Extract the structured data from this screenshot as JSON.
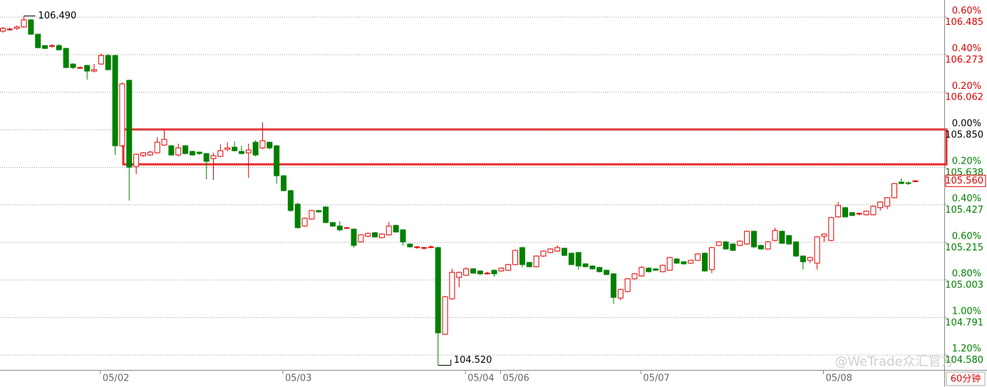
{
  "chart_data": {
    "type": "candlestick",
    "up_color": "#e00000",
    "down_color": "#008000",
    "grid": true,
    "ylim": [
      104.494,
      106.58
    ],
    "yticks": [
      106.485,
      106.273,
      106.062,
      {
        "value": 105.85,
        "label": "105.850"
      },
      105.638,
      105.427,
      105.215,
      105.003,
      104.791,
      {
        "value": 104.58,
        "label": "104.580"
      }
    ],
    "y2lim": [
      -1.281,
      0.69
    ],
    "y2ticks": [
      {
        "value": 0.6,
        "label": "0.60%"
      },
      {
        "value": 0.4,
        "label": "0.40%"
      },
      {
        "value": 0.2,
        "label": "0.20%"
      },
      {
        "value": 0,
        "label": "0.00%"
      },
      {
        "value": -0.2,
        "label": "0.20%"
      },
      {
        "value": -0.4,
        "label": "0.40%"
      },
      {
        "value": -0.6,
        "label": "0.60%"
      },
      {
        "value": -0.8,
        "label": "0.80%"
      },
      {
        "value": -1.0,
        "label": "1.00%"
      },
      {
        "value": -1.2,
        "label": "1.20%"
      }
    ],
    "categories": [
      null,
      null,
      null,
      null,
      null,
      null,
      null,
      null,
      null,
      null,
      null,
      null,
      null,
      null,
      "05/02",
      null,
      null,
      null,
      null,
      null,
      null,
      null,
      null,
      null,
      null,
      null,
      null,
      null,
      null,
      null,
      null,
      null,
      null,
      null,
      null,
      null,
      null,
      null,
      null,
      null,
      "05/03",
      null,
      null,
      null,
      null,
      null,
      null,
      null,
      null,
      null,
      null,
      null,
      null,
      null,
      null,
      null,
      null,
      null,
      null,
      null,
      null,
      null,
      null,
      null,
      null,
      null,
      "05/04",
      null,
      null,
      null,
      null,
      "05/06",
      null,
      null,
      null,
      null,
      null,
      null,
      null,
      null,
      null,
      null,
      null,
      null,
      null,
      null,
      null,
      null,
      null,
      null,
      null,
      "05/07",
      null,
      null,
      null,
      null,
      null,
      null,
      null,
      null,
      null,
      null,
      null,
      null,
      null,
      null,
      null,
      null,
      null,
      null,
      null,
      null,
      null,
      null,
      null,
      null,
      null,
      "05/08",
      null,
      null,
      null,
      null,
      null,
      null,
      null,
      null,
      null,
      null,
      null,
      null,
      null
    ],
    "open": [
      106.404,
      106.416,
      106.42,
      106.428,
      106.468,
      106.387,
      106.323,
      106.319,
      106.323,
      106.307,
      106.219,
      106.199,
      106.211,
      106.179,
      106.219,
      106.267,
      106.267,
      105.758,
      106.127,
      105.641,
      105.702,
      105.706,
      105.718,
      105.762,
      105.758,
      105.706,
      105.758,
      105.726,
      105.722,
      105.714,
      105.686,
      105.698,
      105.738,
      105.75,
      105.726,
      105.718,
      105.778,
      105.746,
      105.778,
      105.758,
      105.589,
      105.505,
      105.429,
      105.305,
      105.345,
      105.393,
      105.413,
      105.325,
      105.305,
      105.296,
      105.288,
      105.216,
      105.248,
      105.268,
      105.24,
      105.256,
      105.309,
      105.284,
      105.204,
      105.188,
      105.184,
      105.184,
      105.184,
      104.695,
      104.895,
      105.016,
      105.028,
      105.064,
      105.052,
      105.04,
      105.056,
      105.052,
      105.056,
      105.088,
      105.184,
      105.1,
      105.076,
      105.136,
      105.156,
      105.164,
      105.18,
      105.152,
      105.156,
      105.092,
      105.08,
      105.072,
      105.056,
      105.036,
      104.899,
      104.936,
      105.008,
      105.024,
      105.068,
      105.064,
      105.048,
      105.056,
      105.12,
      105.104,
      105.096,
      105.112,
      105.152,
      105.06,
      105.196,
      105.216,
      105.204,
      105.196,
      105.204,
      105.276,
      105.196,
      105.176,
      105.224,
      105.276,
      105.252,
      105.216,
      105.136,
      105.112,
      105.096,
      105.248,
      105.224,
      105.357,
      105.409,
      105.381,
      105.377,
      105.369,
      105.369,
      105.409,
      105.417,
      105.465,
      105.553,
      105.549,
      105.557
    ],
    "high": [
      106.428,
      106.424,
      106.436,
      106.49,
      106.472,
      106.391,
      106.327,
      106.331,
      106.331,
      106.311,
      106.223,
      106.207,
      106.215,
      106.219,
      106.279,
      106.275,
      106.271,
      106.115,
      106.131,
      105.714,
      105.722,
      105.73,
      105.806,
      105.846,
      105.762,
      105.77,
      105.762,
      105.73,
      105.726,
      105.718,
      105.718,
      105.766,
      105.778,
      105.782,
      105.758,
      105.77,
      105.79,
      105.89,
      105.782,
      105.762,
      105.593,
      105.509,
      105.437,
      105.353,
      105.397,
      105.397,
      105.417,
      105.329,
      105.333,
      105.3,
      105.292,
      105.26,
      105.268,
      105.272,
      105.264,
      105.329,
      105.313,
      105.288,
      105.208,
      105.192,
      105.188,
      105.196,
      105.188,
      104.911,
      105.064,
      105.048,
      105.072,
      105.068,
      105.056,
      105.048,
      105.06,
      105.072,
      105.092,
      105.172,
      105.188,
      105.104,
      105.14,
      105.168,
      105.18,
      105.196,
      105.184,
      105.156,
      105.16,
      105.096,
      105.084,
      105.076,
      105.06,
      105.04,
      104.952,
      105.012,
      105.04,
      105.08,
      105.072,
      105.068,
      105.088,
      105.132,
      105.124,
      105.108,
      105.116,
      105.152,
      105.156,
      105.188,
      105.22,
      105.22,
      105.208,
      105.224,
      105.28,
      105.28,
      105.2,
      105.22,
      105.296,
      105.28,
      105.256,
      105.22,
      105.14,
      105.132,
      105.248,
      105.264,
      105.357,
      105.441,
      105.413,
      105.385,
      105.381,
      105.393,
      105.421,
      105.445,
      105.469,
      105.549,
      105.573,
      105.557,
      105.565
    ],
    "low": [
      106.396,
      106.408,
      106.412,
      106.424,
      106.383,
      106.307,
      106.303,
      106.311,
      106.295,
      106.195,
      106.191,
      106.191,
      106.131,
      106.171,
      106.215,
      106.183,
      105.706,
      105.75,
      105.449,
      105.598,
      105.694,
      105.702,
      105.714,
      105.758,
      105.702,
      105.698,
      105.71,
      105.702,
      105.706,
      105.569,
      105.565,
      105.694,
      105.726,
      105.726,
      105.71,
      105.577,
      105.698,
      105.738,
      105.738,
      105.545,
      105.501,
      105.385,
      105.292,
      105.301,
      105.341,
      105.381,
      105.321,
      105.301,
      105.276,
      105.292,
      105.184,
      105.212,
      105.244,
      105.24,
      105.236,
      105.252,
      105.268,
      105.196,
      105.184,
      105.176,
      105.172,
      105.18,
      104.52,
      104.691,
      104.891,
      104.96,
      105.024,
      105.036,
      105.028,
      105.032,
      105.02,
      105.048,
      105.052,
      105.084,
      105.072,
      105.072,
      105.072,
      105.132,
      105.152,
      105.16,
      105.136,
      105.084,
      105.06,
      105.072,
      105.06,
      105.044,
      105.028,
      104.867,
      104.887,
      104.932,
      105.004,
      105.02,
      105.044,
      105.052,
      105.044,
      105.052,
      105.092,
      105.088,
      105.092,
      105.108,
      105.048,
      105.04,
      105.192,
      105.172,
      105.164,
      105.192,
      105.2,
      105.18,
      105.172,
      105.172,
      105.22,
      105.204,
      105.2,
      105.132,
      105.06,
      105.096,
      105.06,
      105.216,
      105.22,
      105.353,
      105.353,
      105.361,
      105.365,
      105.365,
      105.365,
      105.393,
      105.401,
      105.461,
      105.541,
      105.537,
      105.553
    ],
    "close": [
      106.42,
      106.416,
      106.428,
      106.468,
      106.387,
      106.311,
      106.307,
      106.323,
      106.299,
      106.199,
      106.199,
      106.199,
      106.179,
      106.187,
      106.267,
      106.187,
      105.758,
      106.107,
      105.637,
      105.71,
      105.718,
      105.722,
      105.778,
      105.794,
      105.706,
      105.746,
      105.714,
      105.706,
      105.714,
      105.67,
      105.702,
      105.73,
      105.746,
      105.73,
      105.714,
      105.734,
      105.706,
      105.786,
      105.746,
      105.589,
      105.505,
      105.393,
      105.296,
      105.349,
      105.393,
      105.385,
      105.325,
      105.305,
      105.284,
      105.296,
      105.196,
      105.256,
      105.264,
      105.244,
      105.26,
      105.305,
      105.272,
      105.216,
      105.188,
      105.188,
      105.184,
      105.188,
      104.703,
      104.907,
      105.044,
      105.044,
      105.064,
      105.04,
      105.036,
      105.04,
      105.036,
      105.068,
      105.088,
      105.168,
      105.088,
      105.076,
      105.136,
      105.164,
      105.176,
      105.184,
      105.14,
      105.088,
      105.08,
      105.076,
      105.064,
      105.048,
      105.032,
      104.903,
      104.948,
      105.008,
      105.036,
      105.072,
      105.048,
      105.056,
      105.084,
      105.128,
      105.096,
      105.092,
      105.112,
      105.148,
      105.052,
      105.184,
      105.216,
      105.176,
      105.168,
      105.22,
      105.276,
      105.188,
      105.176,
      105.216,
      105.28,
      105.208,
      105.204,
      105.136,
      105.104,
      105.128,
      105.244,
      105.26,
      105.353,
      105.421,
      105.357,
      105.365,
      105.377,
      105.389,
      105.417,
      105.441,
      105.465,
      105.545,
      105.545,
      105.545,
      105.56
    ],
    "annotations": [
      "106.490",
      "104.520"
    ],
    "last_price": "105.560",
    "watermark": "@WeTrade众汇官方",
    "period": "60分钟"
  }
}
